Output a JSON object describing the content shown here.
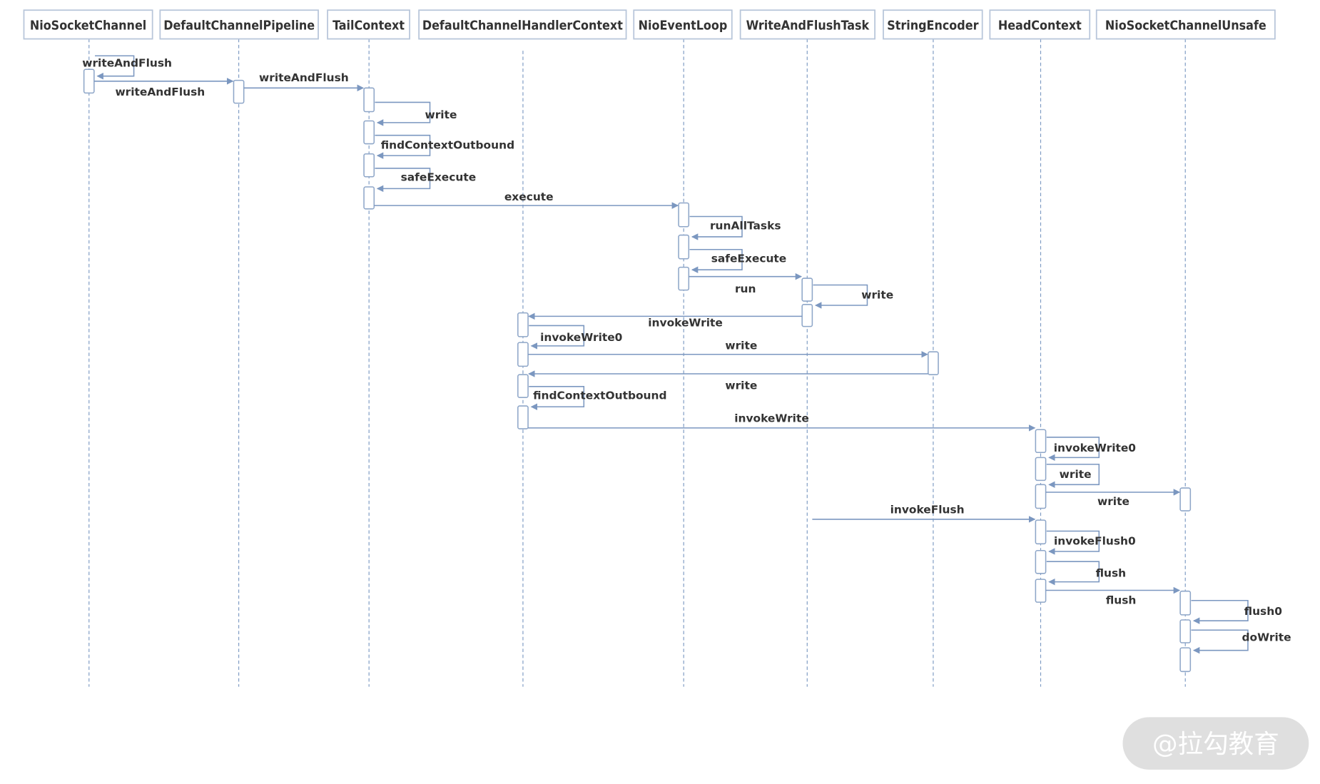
{
  "participants": [
    "NioSocketChannel",
    "DefaultChannelPipeline",
    "TailContext",
    "DefaultChannelHandlerContext",
    "NioEventLoop",
    "WriteAndFlushTask",
    "StringEncoder",
    "HeadContext",
    "NioSocketChannelUnsafe"
  ],
  "messages": [
    {
      "from": 0,
      "to": 0,
      "label": "writeAndFlush"
    },
    {
      "from": 0,
      "to": 1,
      "label": "writeAndFlush"
    },
    {
      "from": 1,
      "to": 2,
      "label": "writeAndFlush"
    },
    {
      "from": 2,
      "to": 2,
      "label": "write"
    },
    {
      "from": 2,
      "to": 2,
      "label": "findContextOutbound"
    },
    {
      "from": 2,
      "to": 2,
      "label": "safeExecute"
    },
    {
      "from": 2,
      "to": 4,
      "label": "execute"
    },
    {
      "from": 4,
      "to": 4,
      "label": "runAllTasks"
    },
    {
      "from": 4,
      "to": 4,
      "label": "safeExecute"
    },
    {
      "from": 4,
      "to": 5,
      "label": "run"
    },
    {
      "from": 5,
      "to": 5,
      "label": "write"
    },
    {
      "from": 5,
      "to": 3,
      "label": "invokeWrite"
    },
    {
      "from": 3,
      "to": 3,
      "label": "invokeWrite0"
    },
    {
      "from": 3,
      "to": 6,
      "label": "write"
    },
    {
      "from": 6,
      "to": 3,
      "label": "write"
    },
    {
      "from": 3,
      "to": 3,
      "label": "findContextOutbound"
    },
    {
      "from": 3,
      "to": 7,
      "label": "invokeWrite"
    },
    {
      "from": 7,
      "to": 7,
      "label": "invokeWrite0"
    },
    {
      "from": 7,
      "to": 7,
      "label": "write"
    },
    {
      "from": 7,
      "to": 8,
      "label": "write"
    },
    {
      "from": 5,
      "to": 7,
      "label": "invokeFlush"
    },
    {
      "from": 7,
      "to": 7,
      "label": "invokeFlush0"
    },
    {
      "from": 7,
      "to": 7,
      "label": "flush"
    },
    {
      "from": 7,
      "to": 8,
      "label": "flush"
    },
    {
      "from": 8,
      "to": 8,
      "label": "flush0"
    },
    {
      "from": 8,
      "to": 8,
      "label": "doWrite"
    }
  ],
  "watermark": "@拉勾教育",
  "colors": {
    "line": "#7b97c0",
    "header_border": "#b8c6da",
    "text": "#333333",
    "watermark_bg": "#d9d9d9"
  }
}
